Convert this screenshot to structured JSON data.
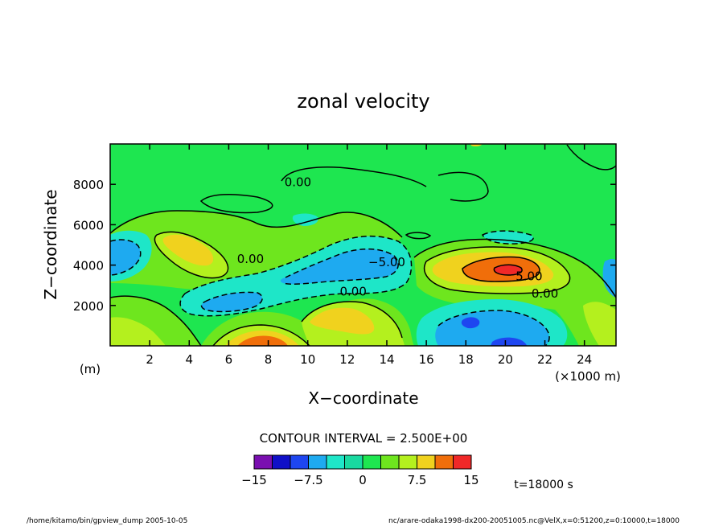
{
  "chart_data": {
    "type": "heatmap",
    "title": "zonal velocity",
    "xlabel": "X−coordinate",
    "ylabel": "Z−coordinate",
    "x_unit": "(×1000 m)",
    "y_unit": "(m)",
    "xlim": [
      0,
      25.6
    ],
    "ylim": [
      0,
      10000
    ],
    "x_ticks": [
      2,
      4,
      6,
      8,
      10,
      12,
      14,
      16,
      18,
      20,
      22,
      24
    ],
    "y_ticks": [
      2000,
      4000,
      6000,
      8000
    ],
    "x_tick_labels": [
      "2",
      "4",
      "6",
      "8",
      "10",
      "12",
      "14",
      "16",
      "18",
      "20",
      "22",
      "24"
    ],
    "y_tick_labels": [
      "2000",
      "4000",
      "6000",
      "8000"
    ],
    "contour_interval_text": "CONTOUR INTERVAL = 2.500E+00",
    "contour_labels": [
      {
        "text": "0.00",
        "x": 9.5,
        "y": 7900
      },
      {
        "text": "0.00",
        "x": 7.1,
        "y": 4100
      },
      {
        "text": "−5.00",
        "x": 14.0,
        "y": 3950
      },
      {
        "text": "0.00",
        "x": 12.3,
        "y": 2500
      },
      {
        "text": "5.00",
        "x": 21.2,
        "y": 3250
      },
      {
        "text": "0.00",
        "x": 22.0,
        "y": 2400
      }
    ],
    "colorbar": {
      "boundaries": [
        -15,
        -12.5,
        -10,
        -7.5,
        -5,
        -2.5,
        0,
        2.5,
        5,
        7.5,
        10,
        12.5,
        15
      ],
      "colors": [
        "#7a0fb0",
        "#1010c8",
        "#1e46f0",
        "#1eaaf0",
        "#1ee6c8",
        "#19d9a0",
        "#1ee650",
        "#6ee61e",
        "#b4f01e",
        "#f0d21e",
        "#f06e0a",
        "#f02828",
        "#f5919b"
      ],
      "tick_labels": [
        "−15",
        "−7.5",
        "0",
        "7.5",
        "15"
      ]
    },
    "time_label": "t=18000 s"
  },
  "footer": {
    "left": "/home/kitamo/bin/gpview_dump  2005-10-05",
    "right": "nc/arare-odaka1998-dx200-20051005.nc@VelX,x=0:51200,z=0:10000,t=18000"
  }
}
